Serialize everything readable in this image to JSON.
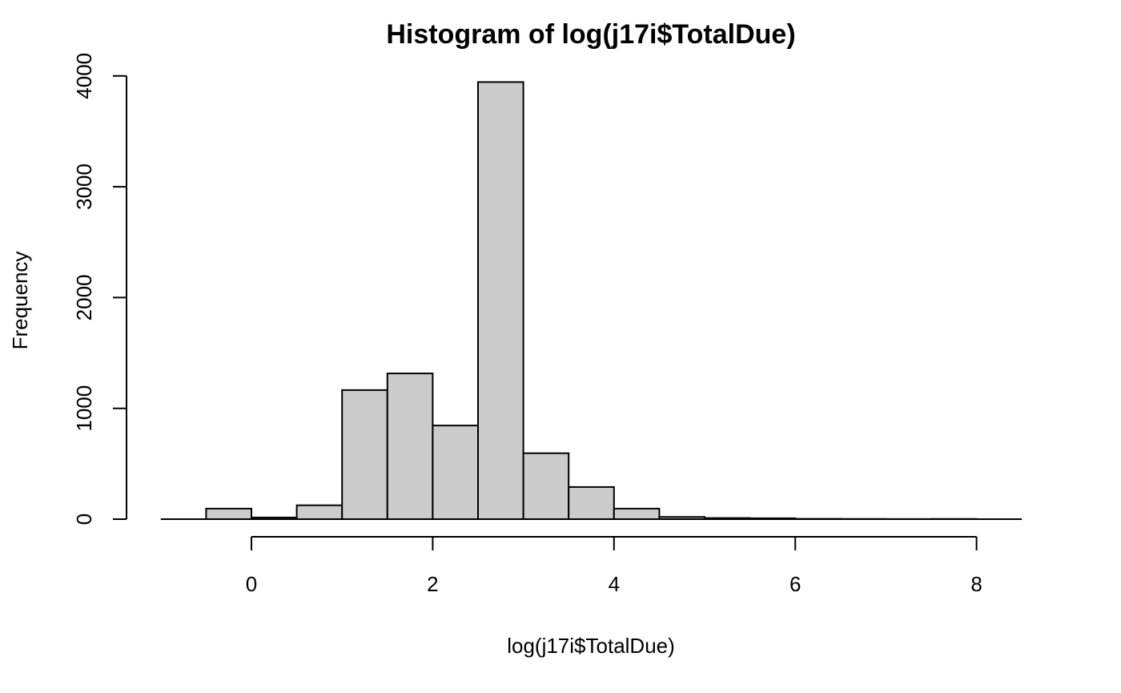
{
  "chart_data": {
    "type": "bar",
    "title": "Histogram of log(j17i$TotalDue)",
    "xlabel": "log(j17i$TotalDue)",
    "ylabel": "Frequency",
    "bin_width": 0.5,
    "bin_starts": [
      -0.5,
      0.0,
      0.5,
      1.0,
      1.5,
      2.0,
      2.5,
      3.0,
      3.5,
      4.0,
      4.5,
      5.0,
      5.5,
      6.0,
      6.5,
      7.0,
      7.5
    ],
    "values": [
      95,
      15,
      125,
      1165,
      1315,
      845,
      3945,
      595,
      290,
      95,
      20,
      10,
      8,
      3,
      2,
      1,
      2
    ],
    "xlim": [
      -1,
      8.5
    ],
    "ylim": [
      0,
      4000
    ],
    "x_ticks": [
      0,
      2,
      4,
      6,
      8
    ],
    "x_tick_labels": [
      "0",
      "2",
      "4",
      "6",
      "8"
    ],
    "y_ticks": [
      0,
      1000,
      2000,
      3000,
      4000
    ],
    "y_tick_labels": [
      "0",
      "1000",
      "2000",
      "3000",
      "4000"
    ],
    "bar_color": "#cccccc",
    "grid": false
  }
}
